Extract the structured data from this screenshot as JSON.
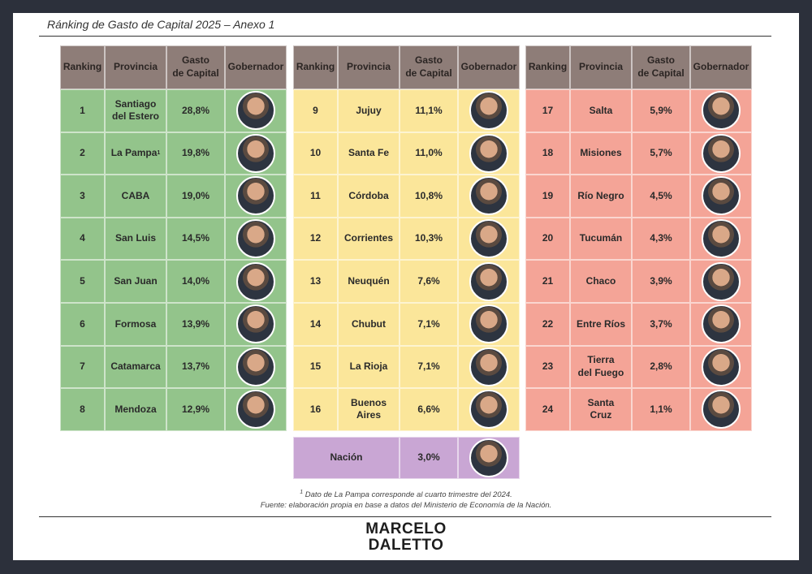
{
  "header": {
    "title": "Ránking de Gasto de Capital 2025 – Anexo 1"
  },
  "tables": [
    {
      "headers": [
        "Ranking",
        "Provincia",
        "Gasto\nde Capital",
        "Gobernador"
      ],
      "rows": [
        {
          "ranking": 1,
          "province": "Santiago\ndel Estero",
          "gasto": "28,8%"
        },
        {
          "ranking": 2,
          "province": "La Pampa",
          "note": "1",
          "gasto": "19,8%"
        },
        {
          "ranking": 3,
          "province": "CABA",
          "gasto": "19,0%"
        },
        {
          "ranking": 4,
          "province": "San Luis",
          "gasto": "14,5%"
        },
        {
          "ranking": 5,
          "province": "San Juan",
          "gasto": "14,0%"
        },
        {
          "ranking": 6,
          "province": "Formosa",
          "gasto": "13,9%"
        },
        {
          "ranking": 7,
          "province": "Catamarca",
          "gasto": "13,7%"
        },
        {
          "ranking": 8,
          "province": "Mendoza",
          "gasto": "12,9%"
        }
      ]
    },
    {
      "headers": [
        "Ranking",
        "Provincia",
        "Gasto\nde Capital",
        "Gobernador"
      ],
      "rows": [
        {
          "ranking": 9,
          "province": "Jujuy",
          "gasto": "11,1%"
        },
        {
          "ranking": 10,
          "province": "Santa Fe",
          "gasto": "11,0%"
        },
        {
          "ranking": 11,
          "province": "Córdoba",
          "gasto": "10,8%"
        },
        {
          "ranking": 12,
          "province": "Corrientes",
          "gasto": "10,3%"
        },
        {
          "ranking": 13,
          "province": "Neuquén",
          "gasto": "7,6%"
        },
        {
          "ranking": 14,
          "province": "Chubut",
          "gasto": "7,1%"
        },
        {
          "ranking": 15,
          "province": "La Rioja",
          "gasto": "7,1%"
        },
        {
          "ranking": 16,
          "province": "Buenos Aires",
          "gasto": "6,6%"
        }
      ]
    },
    {
      "headers": [
        "Ranking",
        "Provincia",
        "Gasto\nde Capital",
        "Gobernador"
      ],
      "rows": [
        {
          "ranking": 17,
          "province": "Salta",
          "gasto": "5,9%"
        },
        {
          "ranking": 18,
          "province": "Misiones",
          "gasto": "5,7%"
        },
        {
          "ranking": 19,
          "province": "Río Negro",
          "gasto": "4,5%"
        },
        {
          "ranking": 20,
          "province": "Tucumán",
          "gasto": "4,3%"
        },
        {
          "ranking": 21,
          "province": "Chaco",
          "gasto": "3,9%"
        },
        {
          "ranking": 22,
          "province": "Entre Ríos",
          "gasto": "3,7%"
        },
        {
          "ranking": 23,
          "province": "Tierra\ndel Fuego",
          "gasto": "2,8%"
        },
        {
          "ranking": 24,
          "province": "Santa Cruz",
          "gasto": "1,1%"
        }
      ]
    }
  ],
  "national": {
    "province": "Nación",
    "gasto": "3,0%"
  },
  "footnotes": {
    "marker": "1",
    "note": "Dato de La Pampa corresponde al cuarto trimestre del 2024.",
    "source": "Fuente: elaboración propia en base a datos del Ministerio de Economía de la Nación."
  },
  "logo": {
    "line1": "MARCELO",
    "line2": "DALETTO"
  }
}
